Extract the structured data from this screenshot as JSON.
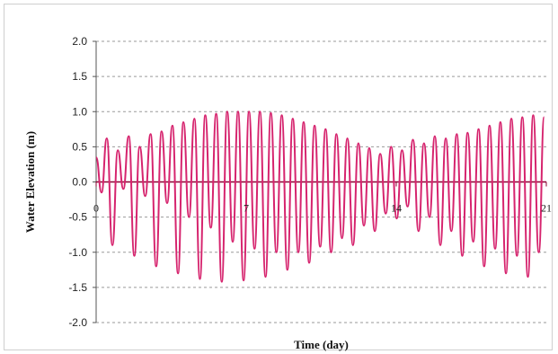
{
  "chart_data": {
    "type": "line",
    "title": "",
    "xlabel": "Time (day)",
    "ylabel": "Water Elevation (m)",
    "xlim": [
      0,
      21
    ],
    "ylim": [
      -2.0,
      2.0
    ],
    "y_ticks": [
      2.0,
      1.5,
      1.0,
      0.5,
      0.0,
      -0.5,
      -1.0,
      -1.5,
      -2.0
    ],
    "y_tick_labels": [
      "2.0",
      "1.5",
      "1.0",
      "0.5",
      "0.0",
      "-0.5",
      "-1.0",
      "-1.5",
      "-2.0"
    ],
    "x_ticks": [
      0,
      7,
      14,
      21
    ],
    "x_tick_labels": [
      "0",
      "7",
      "14",
      "21"
    ],
    "grid": "horizontal-dashed",
    "legend": "none",
    "colors": {
      "series": "#d6246e",
      "zero_line": "#8a0030",
      "grid": "#9a9a9a"
    },
    "series": [
      {
        "x": [
          0.0,
          0.25,
          0.5,
          0.76,
          1.01,
          1.27,
          1.52,
          1.78,
          2.03,
          2.29,
          2.54,
          2.8,
          3.05,
          3.31,
          3.56,
          3.82,
          4.07,
          4.33,
          4.58,
          4.84,
          5.09,
          5.35,
          5.6,
          5.86,
          6.11,
          6.37,
          6.62,
          6.88,
          7.13,
          7.39,
          7.64,
          7.9,
          8.15,
          8.41,
          8.66,
          8.92,
          9.17,
          9.43,
          9.68,
          9.94,
          10.19,
          10.45,
          10.7,
          10.96,
          11.21,
          11.47,
          11.72,
          11.98,
          12.23,
          12.49,
          12.74,
          13.0,
          13.25,
          13.51,
          13.76,
          14.02,
          14.27,
          14.53,
          14.78,
          15.04,
          15.29,
          15.55,
          15.8,
          16.06,
          16.31,
          16.57,
          16.82,
          17.08,
          17.33,
          17.59,
          17.84,
          18.1,
          18.35,
          18.61,
          18.86,
          19.12,
          19.37,
          19.63,
          19.88,
          20.14,
          20.39,
          20.65,
          20.9
        ],
        "values": [
          0.35,
          -0.15,
          0.62,
          -0.9,
          0.45,
          -0.1,
          0.65,
          -1.05,
          0.5,
          -0.2,
          0.68,
          -1.2,
          0.72,
          -0.3,
          0.8,
          -1.3,
          0.85,
          -0.5,
          0.9,
          -1.38,
          0.95,
          -0.65,
          0.97,
          -1.42,
          1.0,
          -0.85,
          1.0,
          -1.4,
          1.0,
          -0.95,
          1.0,
          -1.35,
          0.98,
          -1.0,
          0.95,
          -1.25,
          0.9,
          -1.0,
          0.85,
          -1.15,
          0.8,
          -0.92,
          0.75,
          -1.0,
          0.68,
          -0.8,
          0.62,
          -0.9,
          0.55,
          -0.62,
          0.48,
          -0.7,
          0.4,
          -0.45,
          0.5,
          -0.52,
          0.45,
          -0.35,
          0.6,
          -0.7,
          0.55,
          -0.5,
          0.65,
          -0.9,
          0.62,
          -0.7,
          0.68,
          -1.05,
          0.7,
          -0.85,
          0.75,
          -1.2,
          0.8,
          -0.95,
          0.85,
          -1.3,
          0.9,
          -1.05,
          0.92,
          -1.35,
          0.95,
          -1.0,
          0.92
        ]
      }
    ]
  }
}
